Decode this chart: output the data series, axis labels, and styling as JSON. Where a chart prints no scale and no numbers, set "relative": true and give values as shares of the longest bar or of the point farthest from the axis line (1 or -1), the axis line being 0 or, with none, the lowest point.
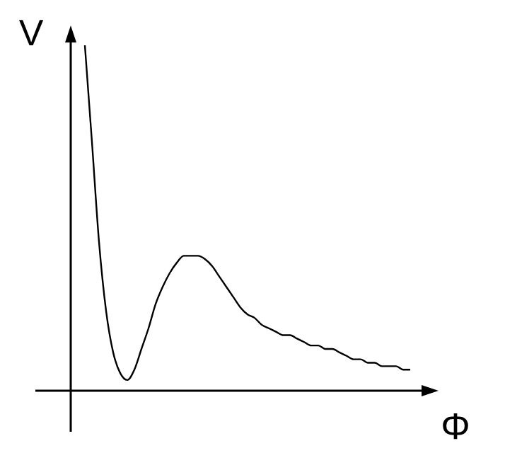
{
  "chart_data": {
    "type": "line",
    "xlabel": "Φ",
    "ylabel": "V",
    "relative": true,
    "categories": [
      null,
      null,
      null,
      null,
      null,
      null,
      null,
      null,
      null,
      null,
      null,
      null,
      null,
      null,
      null,
      null,
      null,
      null,
      null,
      null,
      null,
      null,
      null,
      null,
      null,
      null,
      null,
      null,
      null,
      null,
      null,
      null,
      null,
      null,
      null,
      null,
      null,
      null,
      null,
      null,
      null,
      null,
      null,
      null,
      null,
      null,
      null
    ],
    "series": [
      {
        "color": "#000000",
        "values": [
          1.0,
          0.72,
          0.43,
          0.23,
          0.11,
          0.05,
          0.03,
          0.06,
          0.12,
          0.18,
          0.25,
          0.3,
          0.34,
          0.37,
          0.39,
          0.39,
          0.39,
          0.38,
          0.36,
          0.33,
          0.3,
          0.27,
          0.24,
          0.22,
          0.21,
          0.19,
          0.18,
          0.17,
          0.16,
          0.16,
          0.15,
          0.14,
          0.13,
          0.13,
          0.12,
          0.12,
          0.11,
          0.1,
          0.09,
          0.09,
          0.08,
          0.08,
          0.07,
          0.07,
          0.07,
          0.06,
          0.06
        ]
      }
    ]
  }
}
